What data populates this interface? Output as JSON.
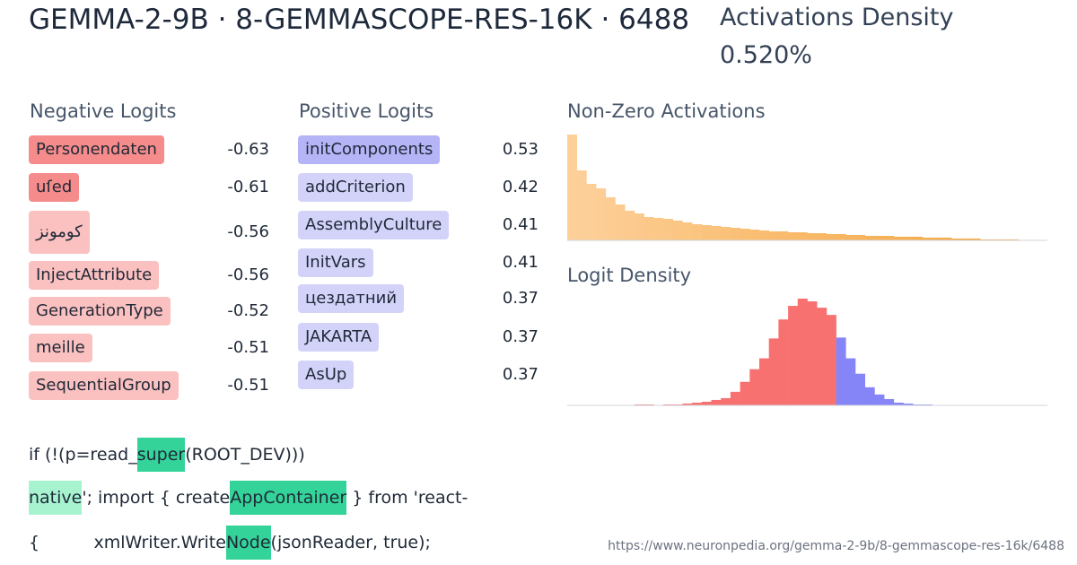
{
  "header": {
    "title": "GEMMA-2-9B · 8-GEMMASCOPE-RES-16K · 6488",
    "density_label": "Activations Density",
    "density_value": "0.520%"
  },
  "negative_logits": {
    "title": "Negative Logits",
    "items": [
      {
        "token": "Personendaten",
        "value": -0.63,
        "color": "#f58b8b"
      },
      {
        "token": "uſed",
        "value": -0.61,
        "color": "#f58b8b"
      },
      {
        "token": "كومونز",
        "value": -0.56,
        "color": "#fbc0c0"
      },
      {
        "token": "InjectAttribute",
        "value": -0.56,
        "color": "#fbc0c0"
      },
      {
        "token": "GenerationType",
        "value": -0.52,
        "color": "#fbc0c0"
      },
      {
        "token": "meille",
        "value": -0.51,
        "color": "#fbc0c0"
      },
      {
        "token": "SequentialGroup",
        "value": -0.51,
        "color": "#fbc0c0"
      }
    ]
  },
  "positive_logits": {
    "title": "Positive Logits",
    "items": [
      {
        "token": "initComponents",
        "value": 0.53,
        "color": "#b4b4f6"
      },
      {
        "token": "addCriterion",
        "value": 0.42,
        "color": "#d3d3fa"
      },
      {
        "token": "AssemblyCulture",
        "value": 0.41,
        "color": "#d3d3fa"
      },
      {
        "token": "InitVars",
        "value": 0.41,
        "color": "#d3d3fa"
      },
      {
        "token": "цездатний",
        "value": 0.37,
        "color": "#d3d3fa"
      },
      {
        "token": "JAKARTA",
        "value": 0.37,
        "color": "#d3d3fa"
      },
      {
        "token": "AsUp",
        "value": 0.37,
        "color": "#d3d3fa"
      }
    ]
  },
  "activations_histogram": {
    "title": "Non-Zero Activations",
    "colors": [
      "#fdd09a",
      "#f4a236"
    ],
    "values": [
      118,
      78,
      63,
      58,
      48,
      40,
      33,
      30,
      26,
      25,
      24,
      22,
      20,
      18,
      17,
      16,
      15,
      14,
      13,
      12,
      11,
      10,
      10,
      9,
      9,
      8,
      8,
      7,
      7,
      6,
      6,
      5,
      5,
      5,
      4,
      4,
      4,
      3,
      3,
      3,
      2,
      2,
      2,
      1,
      1,
      1,
      1,
      0,
      0,
      0
    ]
  },
  "logit_density": {
    "title": "Logit Density",
    "series": [
      {
        "color": "#f87171",
        "values": [
          0,
          0,
          0,
          0,
          0,
          0,
          0,
          1,
          1,
          0,
          1,
          1,
          2,
          3,
          4,
          6,
          8,
          15,
          26,
          40,
          52,
          74,
          95,
          110,
          118,
          115,
          108,
          100
        ]
      },
      {
        "color": "#8585f7",
        "values": [
          75,
          52,
          35,
          20,
          12,
          7,
          3,
          2,
          1,
          1,
          0,
          0,
          0,
          0,
          0,
          0,
          0,
          0,
          0,
          0,
          0,
          0
        ]
      }
    ]
  },
  "snippet": {
    "lines": [
      [
        {
          "text": "if (!(p=read_"
        },
        {
          "text": "super",
          "color": "#34d399"
        },
        {
          "text": "(ROOT_DEV)))"
        }
      ],
      [
        {
          "text": "native",
          "color": "#a7f3d0"
        },
        {
          "text": "'; import { create"
        },
        {
          "text": "AppContainer",
          "color": "#34d399"
        },
        {
          "text": " } from 'react-"
        }
      ],
      [
        {
          "text": "{          xmlWriter.Write"
        },
        {
          "text": "Node",
          "color": "#34d399"
        },
        {
          "text": "(jsonReader, true);"
        }
      ]
    ]
  },
  "footer": {
    "url": "https://www.neuronpedia.org/gemma-2-9b/8-gemmascope-res-16k/6488"
  }
}
